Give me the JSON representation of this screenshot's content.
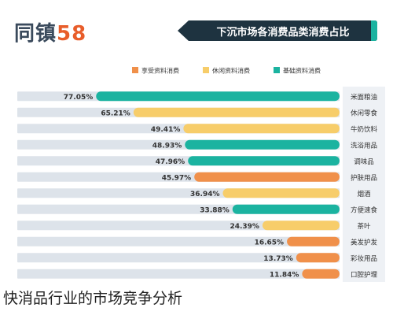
{
  "header": {
    "logo_text_1": "58",
    "logo_text_2": "同镇",
    "title": "下沉市场各消费品类消费占比"
  },
  "caption": "快消品行业的市场竞争分析",
  "colors": {
    "basic": "#1bb3a0",
    "leisure": "#f7cd6a",
    "enjoy": "#f0904a",
    "track": "#dde3ea",
    "label_bg": "#eef1f5"
  },
  "chart_data": {
    "type": "bar",
    "orientation": "horizontal",
    "x_direction": "right-to-left",
    "title": "下沉市场各消费品类消费占比",
    "xlim": [
      0,
      100
    ],
    "x_ticks": [
      "100.00%",
      "90.00%",
      "80.00%",
      "70.00%",
      "60.00%",
      "50.00%",
      "40.00%",
      "30.00%",
      "20.00%",
      "10.00%",
      "0.00%"
    ],
    "legend_position": "top-right",
    "legend": [
      {
        "key": "enjoy",
        "label": "享受资料消费"
      },
      {
        "key": "leisure",
        "label": "休闲资料消费"
      },
      {
        "key": "basic",
        "label": "基础资料消费"
      }
    ],
    "categories": [
      "米面粮油",
      "休闲零食",
      "牛奶饮料",
      "洗浴用品",
      "调味品",
      "护肤用品",
      "烟酒",
      "方便速食",
      "茶叶",
      "美发护发",
      "彩妆用品",
      "口腔护理"
    ],
    "values": [
      77.05,
      65.21,
      49.41,
      48.93,
      47.96,
      45.97,
      36.94,
      33.88,
      24.39,
      16.65,
      13.73,
      11.84
    ],
    "value_labels": [
      "77.05%",
      "65.21%",
      "49.41%",
      "48.93%",
      "47.96%",
      "45.97%",
      "36.94%",
      "33.88%",
      "24.39%",
      "16.65%",
      "13.73%",
      "11.84%"
    ],
    "groups": [
      "basic",
      "leisure",
      "leisure",
      "basic",
      "basic",
      "enjoy",
      "leisure",
      "basic",
      "leisure",
      "enjoy",
      "enjoy",
      "enjoy"
    ]
  }
}
